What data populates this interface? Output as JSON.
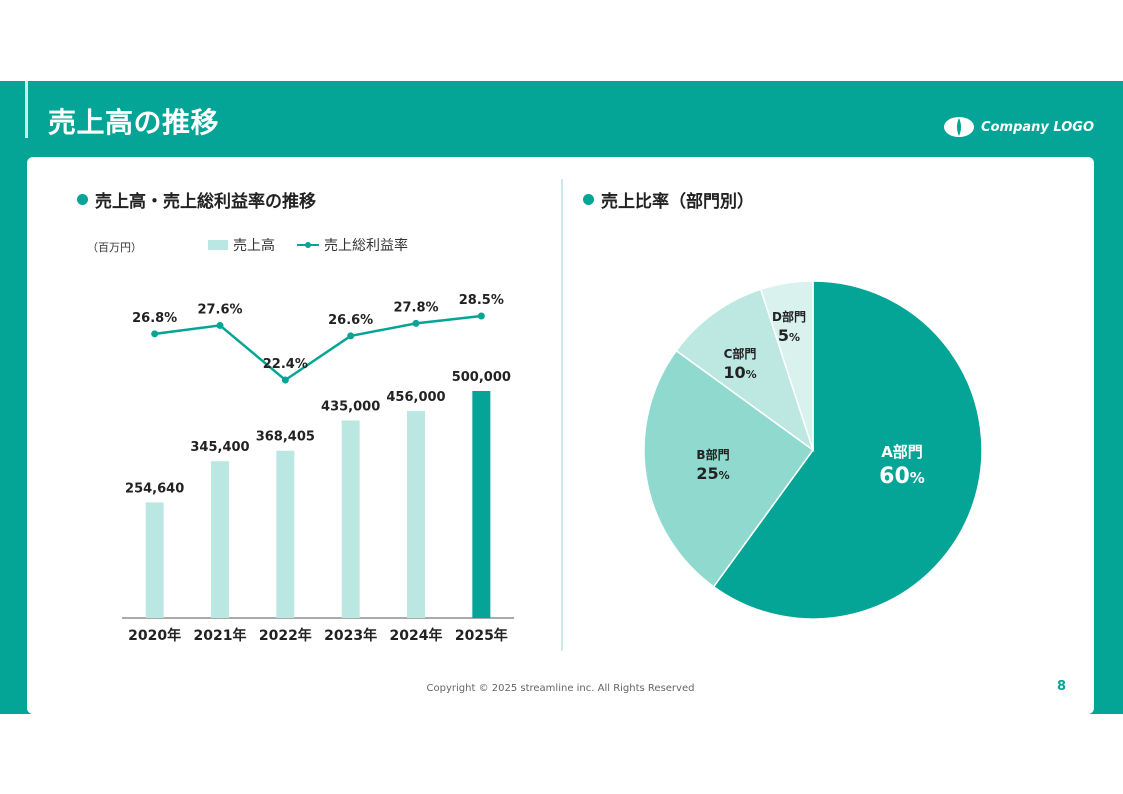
{
  "header": {
    "title": "売上高の推移",
    "logo_text": "Company LOGO"
  },
  "left": {
    "title": "売上高・売上総利益率の推移",
    "unit": "（百万円）",
    "legend": {
      "bar": "売上高",
      "line": "売上総利益率"
    }
  },
  "right": {
    "title": "売上比率（部門別）"
  },
  "footer": {
    "copyright": "Copyright © 2025 streamline inc. All Rights Reserved",
    "page": "8"
  },
  "colors": {
    "teal": "#04a596",
    "light_bar": "#bbe7e2",
    "pie_a": "#04a596",
    "pie_b": "#8fd9cf",
    "pie_c": "#bde8e2",
    "pie_d": "#d9f2ee"
  },
  "chart_data": [
    {
      "type": "bar",
      "categories": [
        "2020年",
        "2021年",
        "2022年",
        "2023年",
        "2024年",
        "2025年"
      ],
      "series": [
        {
          "name": "売上高",
          "type": "bar",
          "values": [
            254640,
            345400,
            368405,
            435000,
            456000,
            500000
          ],
          "labels": [
            "254,640",
            "345,400",
            "368,405",
            "435,000",
            "456,000",
            "500,000"
          ]
        },
        {
          "name": "売上総利益率",
          "type": "line",
          "values": [
            26.8,
            27.6,
            22.4,
            26.6,
            27.8,
            28.5
          ],
          "labels": [
            "26.8%",
            "27.6%",
            "22.4%",
            "26.6%",
            "27.8%",
            "28.5%"
          ]
        }
      ],
      "highlight_category": "2025年",
      "ylabel": "（百万円）",
      "grid": false,
      "legend": "top"
    },
    {
      "type": "pie",
      "slices": [
        {
          "label": "A部門",
          "value": 60,
          "value_text": "60",
          "unit": "%"
        },
        {
          "label": "B部門",
          "value": 25,
          "value_text": "25",
          "unit": "%"
        },
        {
          "label": "C部門",
          "value": 10,
          "value_text": "10",
          "unit": "%"
        },
        {
          "label": "D部門",
          "value": 5,
          "value_text": "5",
          "unit": "%"
        }
      ],
      "legend": "none"
    }
  ]
}
